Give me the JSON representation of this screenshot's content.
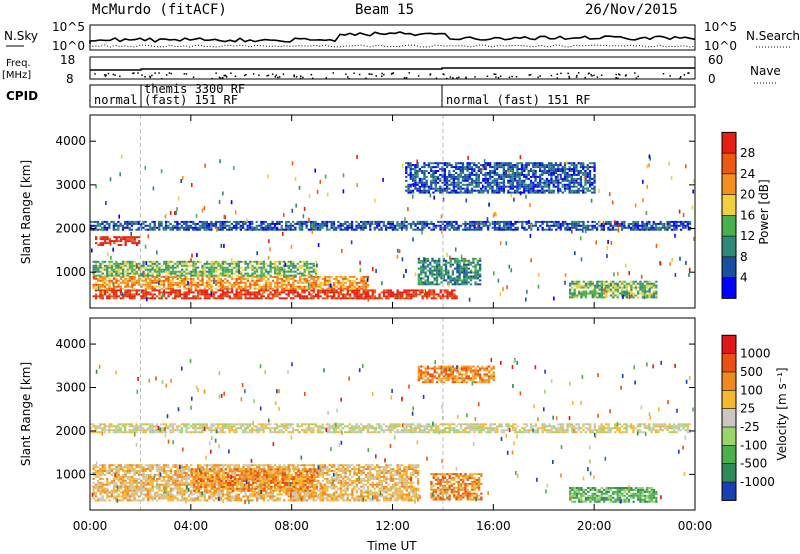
{
  "header": {
    "station": "McMurdo (fitACF)",
    "beam": "Beam 15",
    "date": "26/Nov/2015"
  },
  "strips": {
    "nsky_label": "N.Sky",
    "nsky_top": "10^5",
    "nsky_bottom": "10^0",
    "nsearch_top": "10^5",
    "nsearch_bottom": "10^0",
    "nsearch_label": "N.Search",
    "freq_label": "Freq.",
    "freq_unit": "[MHz]",
    "freq_top": "18",
    "freq_bottom": "8",
    "nave_top": "60",
    "nave_bottom": "0",
    "nave_label": "Nave",
    "cpid_label": "CPID",
    "cpid_segments": [
      {
        "text": "normal",
        "line2": ""
      },
      {
        "text": "themis 3300 RF",
        "line2": "(fast) 151 RF"
      },
      {
        "text": "normal (fast) 151 RF",
        "line2": ""
      }
    ]
  },
  "chart_data": [
    {
      "type": "heatmap",
      "name": "power",
      "ylabel": "Slant Range [km]",
      "yticks": [
        "1000",
        "2000",
        "3000",
        "4000"
      ],
      "ylim": [
        180,
        4600
      ],
      "xlim_hours": [
        0,
        24
      ],
      "colorbar": {
        "label": "Power [dB]",
        "ticks": [
          "4",
          "8",
          "12",
          "16",
          "20",
          "24",
          "28"
        ],
        "colors": [
          "#0000ff",
          "#1a4fa0",
          "#2f8a78",
          "#4ab04a",
          "#f0d040",
          "#f39020",
          "#ec5a10",
          "#e52010"
        ]
      },
      "regions": [
        {
          "t0": 0.1,
          "t1": 14.5,
          "r0": 380,
          "r1": 600,
          "level": 7
        },
        {
          "t0": 0.1,
          "t1": 11,
          "r0": 600,
          "r1": 900,
          "level": 5
        },
        {
          "t0": 0.1,
          "t1": 9,
          "r0": 900,
          "r1": 1250,
          "level": 3
        },
        {
          "t0": 0.2,
          "t1": 2,
          "r0": 1600,
          "r1": 1800,
          "level": 7
        },
        {
          "t0": 0,
          "t1": 23.8,
          "r0": 1950,
          "r1": 2150,
          "level": 1
        },
        {
          "t0": 13,
          "t1": 15.5,
          "r0": 700,
          "r1": 1300,
          "level": 2
        },
        {
          "t0": 19,
          "t1": 22.5,
          "r0": 400,
          "r1": 800,
          "level": 3
        },
        {
          "t0": 12.5,
          "t1": 20,
          "r0": 2800,
          "r1": 3500,
          "level": 1
        }
      ]
    },
    {
      "type": "heatmap",
      "name": "velocity",
      "ylabel": "Slant Range [km]",
      "yticks": [
        "1000",
        "2000",
        "3000",
        "4000"
      ],
      "ylim": [
        180,
        4600
      ],
      "xlim_hours": [
        0,
        24
      ],
      "xticks": [
        "00:00",
        "04:00",
        "08:00",
        "12:00",
        "16:00",
        "20:00",
        "00:00"
      ],
      "xlabel": "Time UT",
      "colorbar": {
        "label": "Velocity [m s⁻¹]",
        "ticks": [
          "1000",
          "500",
          "100",
          "25",
          "-25",
          "-100",
          "-500",
          "-1000"
        ],
        "colors": [
          "#1a3fb0",
          "#2f8a58",
          "#4ab04a",
          "#9ad46a",
          "#c8c8c0",
          "#f5b830",
          "#f08a20",
          "#ea5010",
          "#e01818"
        ]
      },
      "regions": [
        {
          "t0": 0.1,
          "t1": 13,
          "r0": 380,
          "r1": 1200,
          "level": 5
        },
        {
          "t0": 4,
          "t1": 9,
          "r0": 600,
          "r1": 1100,
          "level": 6
        },
        {
          "t0": 0,
          "t1": 23.8,
          "r0": 1950,
          "r1": 2150,
          "level": 4
        },
        {
          "t0": 13.5,
          "t1": 15.5,
          "r0": 400,
          "r1": 1000,
          "level": 6
        },
        {
          "t0": 19,
          "t1": 22.5,
          "r0": 350,
          "r1": 700,
          "level": 2
        },
        {
          "t0": 13,
          "t1": 16,
          "r0": 3100,
          "r1": 3500,
          "level": 6
        }
      ]
    }
  ]
}
